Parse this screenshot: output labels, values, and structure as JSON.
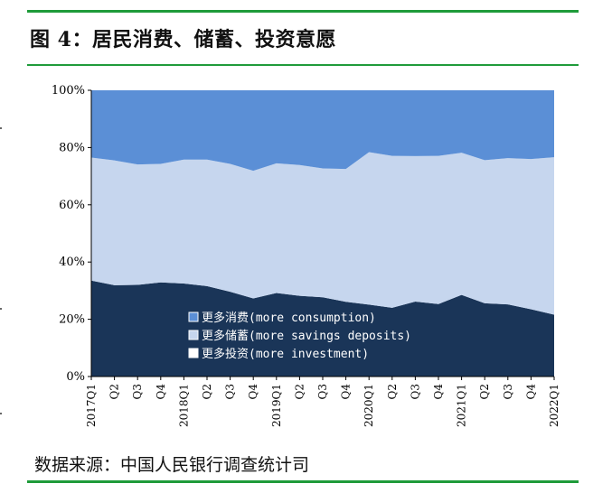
{
  "header": {
    "title": "图 4：居民消费、储蓄、投资意愿"
  },
  "footer": {
    "source": "数据来源：中国人民银行调查统计司"
  },
  "chart_data": {
    "type": "area",
    "stacked": true,
    "title": "",
    "xlabel": "",
    "ylabel": "",
    "ylim": [
      0,
      100
    ],
    "yticks": [
      "0%",
      "20%",
      "40%",
      "60%",
      "80%",
      "100%"
    ],
    "categories": [
      "2017Q1",
      "Q2",
      "Q3",
      "Q4",
      "2018Q1",
      "Q2",
      "Q3",
      "Q4",
      "2019Q1",
      "Q2",
      "Q3",
      "Q4",
      "2020Q1",
      "Q2",
      "Q3",
      "Q4",
      "2021Q1",
      "Q2",
      "Q3",
      "Q4",
      "2022Q1"
    ],
    "series": [
      {
        "name": "更多投资(more investment)",
        "color": "#1a3558",
        "values": [
          33.5,
          31.9,
          32.0,
          32.9,
          32.5,
          31.6,
          29.6,
          27.3,
          29.2,
          28.2,
          27.7,
          26.1,
          25.1,
          24.0,
          26.2,
          25.3,
          28.5,
          25.6,
          25.2,
          23.5,
          21.6
        ]
      },
      {
        "name": "更多储蓄(more savings deposits)",
        "color": "#c6d6ee",
        "values": [
          43.0,
          43.6,
          42.1,
          41.4,
          43.3,
          44.2,
          44.7,
          44.6,
          45.3,
          45.7,
          45.0,
          46.4,
          53.3,
          53.1,
          50.8,
          51.8,
          49.7,
          50.0,
          51.1,
          52.5,
          55.0
        ]
      },
      {
        "name": "更多消费(more consumption)",
        "color": "#5b8fd6",
        "values": [
          23.5,
          24.5,
          25.9,
          25.7,
          24.2,
          24.2,
          25.7,
          28.1,
          25.5,
          26.1,
          27.3,
          27.5,
          21.6,
          22.9,
          23.0,
          22.9,
          21.8,
          24.4,
          23.7,
          24.0,
          23.4
        ]
      }
    ],
    "legend": {
      "position": "bottom-center",
      "order": [
        "更多消费(more consumption)",
        "更多储蓄(more savings deposits)",
        "更多投资(more investment)"
      ]
    },
    "grid": false
  }
}
